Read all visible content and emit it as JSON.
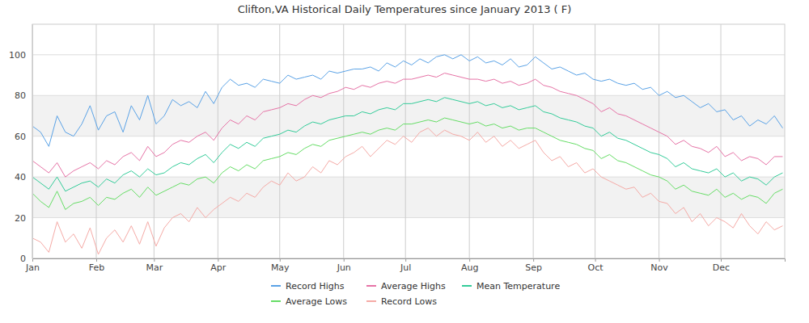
{
  "chart_data": {
    "type": "line",
    "title": "Clifton,VA Historical Daily Temperatures since January 2013 ( F)",
    "x": [
      0,
      4,
      8,
      12,
      16,
      20,
      24,
      28,
      32,
      36,
      40,
      44,
      48,
      52,
      56,
      60,
      64,
      68,
      72,
      76,
      80,
      84,
      88,
      92,
      96,
      100,
      104,
      108,
      112,
      116,
      120,
      124,
      128,
      132,
      136,
      140,
      144,
      148,
      152,
      156,
      160,
      164,
      168,
      172,
      176,
      180,
      184,
      188,
      192,
      196,
      200,
      204,
      208,
      212,
      216,
      220,
      224,
      228,
      232,
      236,
      240,
      244,
      248,
      252,
      256,
      260,
      264,
      268,
      272,
      276,
      280,
      284,
      288,
      292,
      296,
      300,
      304,
      308,
      312,
      316,
      320,
      324,
      328,
      332,
      336,
      340,
      344,
      348,
      352,
      356,
      360,
      364
    ],
    "xlim": [
      0,
      365
    ],
    "xticks": [
      {
        "value": 0,
        "label": "Jan"
      },
      {
        "value": 31,
        "label": "Feb"
      },
      {
        "value": 59,
        "label": "Mar"
      },
      {
        "value": 90,
        "label": "Apr"
      },
      {
        "value": 120,
        "label": "May"
      },
      {
        "value": 151,
        "label": "Jun"
      },
      {
        "value": 181,
        "label": "Jul"
      },
      {
        "value": 212,
        "label": "Aug"
      },
      {
        "value": 243,
        "label": "Sep"
      },
      {
        "value": 273,
        "label": "Oct"
      },
      {
        "value": 304,
        "label": "Nov"
      },
      {
        "value": 334,
        "label": "Dec"
      }
    ],
    "ylim": [
      0,
      115
    ],
    "yticks": [
      0,
      20,
      40,
      60,
      80,
      100
    ],
    "grid": true,
    "legend": "bottom",
    "series": [
      {
        "name": "Record Highs",
        "color": "#5aa2e6",
        "values": [
          65,
          62,
          55,
          70,
          62,
          60,
          66,
          75,
          63,
          70,
          72,
          62,
          75,
          68,
          80,
          66,
          70,
          78,
          75,
          77,
          74,
          82,
          76,
          84,
          88,
          85,
          86,
          84,
          88,
          87,
          86,
          90,
          88,
          89,
          90,
          88,
          92,
          91,
          92,
          93,
          93,
          94,
          92,
          96,
          94,
          97,
          95,
          98,
          96,
          99,
          100,
          98,
          100,
          97,
          99,
          96,
          97,
          95,
          98,
          94,
          95,
          99,
          96,
          93,
          94,
          92,
          90,
          91,
          88,
          87,
          88,
          86,
          85,
          86,
          83,
          84,
          80,
          82,
          79,
          80,
          77,
          74,
          76,
          72,
          73,
          68,
          70,
          65,
          68,
          66,
          70,
          64
        ]
      },
      {
        "name": "Average Highs",
        "color": "#e673a6",
        "values": [
          48,
          45,
          42,
          47,
          40,
          43,
          45,
          47,
          44,
          48,
          46,
          50,
          52,
          48,
          55,
          50,
          52,
          56,
          58,
          57,
          60,
          62,
          58,
          64,
          68,
          66,
          70,
          68,
          72,
          73,
          74,
          76,
          75,
          78,
          80,
          79,
          81,
          82,
          84,
          83,
          85,
          84,
          86,
          87,
          86,
          88,
          88,
          89,
          90,
          89,
          91,
          90,
          89,
          88,
          88,
          87,
          88,
          86,
          87,
          85,
          86,
          88,
          85,
          84,
          82,
          81,
          80,
          78,
          76,
          72,
          74,
          71,
          70,
          68,
          66,
          64,
          62,
          60,
          56,
          58,
          55,
          54,
          52,
          55,
          50,
          52,
          48,
          50,
          49,
          46,
          50,
          50
        ]
      },
      {
        "name": "Mean Temperature",
        "color": "#33cc99",
        "values": [
          40,
          37,
          34,
          40,
          33,
          35,
          37,
          38,
          35,
          39,
          37,
          41,
          43,
          40,
          44,
          41,
          42,
          45,
          47,
          46,
          49,
          51,
          47,
          52,
          56,
          54,
          57,
          55,
          59,
          60,
          61,
          63,
          62,
          65,
          67,
          66,
          68,
          69,
          70,
          70,
          72,
          71,
          73,
          74,
          73,
          76,
          76,
          77,
          78,
          77,
          79,
          78,
          77,
          76,
          77,
          75,
          76,
          74,
          75,
          73,
          74,
          75,
          72,
          71,
          69,
          68,
          67,
          65,
          64,
          60,
          62,
          59,
          58,
          56,
          54,
          52,
          51,
          49,
          45,
          47,
          44,
          43,
          42,
          44,
          40,
          42,
          38,
          40,
          39,
          36,
          40,
          42
        ]
      },
      {
        "name": "Average Lows",
        "color": "#66dd66",
        "values": [
          32,
          28,
          25,
          33,
          24,
          27,
          28,
          30,
          26,
          30,
          29,
          32,
          34,
          30,
          35,
          31,
          33,
          35,
          37,
          36,
          39,
          40,
          37,
          42,
          45,
          43,
          46,
          44,
          48,
          49,
          50,
          52,
          51,
          54,
          56,
          55,
          58,
          59,
          60,
          61,
          62,
          61,
          63,
          64,
          63,
          66,
          66,
          67,
          68,
          67,
          69,
          68,
          67,
          66,
          67,
          65,
          66,
          64,
          65,
          63,
          64,
          64,
          62,
          60,
          58,
          57,
          56,
          54,
          53,
          49,
          51,
          48,
          47,
          45,
          43,
          41,
          40,
          38,
          34,
          36,
          33,
          32,
          31,
          34,
          30,
          32,
          29,
          31,
          30,
          27,
          32,
          34
        ]
      },
      {
        "name": "Record Lows",
        "color": "#f5aaa6",
        "values": [
          10,
          8,
          3,
          18,
          8,
          12,
          5,
          15,
          2,
          10,
          14,
          8,
          16,
          7,
          18,
          6,
          15,
          20,
          22,
          18,
          25,
          20,
          24,
          27,
          30,
          28,
          32,
          30,
          35,
          38,
          36,
          42,
          38,
          40,
          45,
          42,
          48,
          46,
          50,
          52,
          55,
          50,
          54,
          58,
          56,
          60,
          57,
          62,
          64,
          60,
          63,
          61,
          60,
          58,
          62,
          57,
          60,
          55,
          58,
          54,
          56,
          58,
          52,
          48,
          50,
          45,
          47,
          42,
          44,
          40,
          38,
          36,
          34,
          35,
          30,
          32,
          28,
          27,
          22,
          25,
          18,
          22,
          16,
          20,
          18,
          15,
          22,
          16,
          12,
          18,
          14,
          16
        ]
      }
    ]
  }
}
